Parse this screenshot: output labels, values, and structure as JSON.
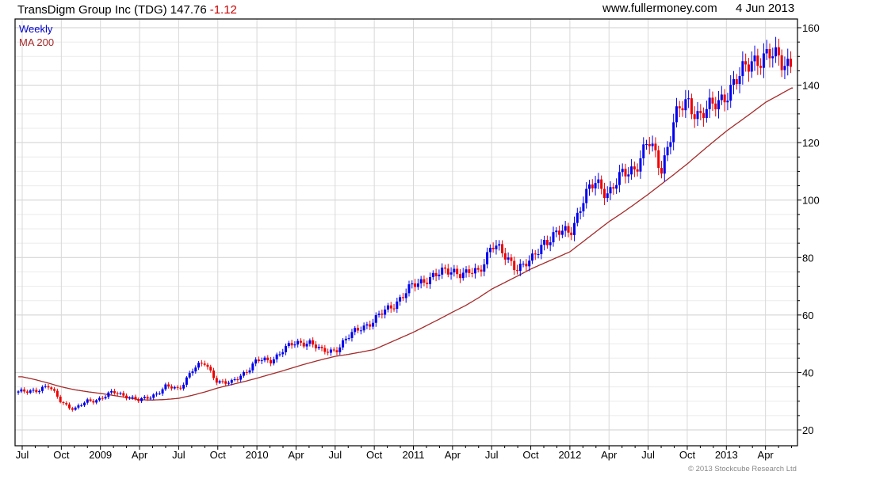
{
  "header": {
    "title": "TransDigm Group Inc (TDG) 147.76",
    "change": "-1.12",
    "site": "www.fullermoney.com",
    "date": "4 Jun 2013"
  },
  "legend": {
    "series1": "Weekly",
    "series2": "MA 200"
  },
  "footer": {
    "copyright": "© 2013 Stockcube Research Ltd"
  },
  "colors": {
    "up": "#0000ee",
    "down": "#ee0000",
    "ma": "#a52a2a",
    "grid": "#d8d8d8",
    "change": "#cc0000"
  },
  "chart_data": {
    "type": "candlestick",
    "title": "TransDigm Group Inc (TDG) 147.76 -1.12",
    "ylim": [
      15,
      162
    ],
    "yticks": [
      20,
      40,
      60,
      80,
      100,
      120,
      140,
      160
    ],
    "xticks": [
      "Jul",
      "Oct",
      "2009",
      "Apr",
      "Jul",
      "Oct",
      "2010",
      "Apr",
      "Jul",
      "Oct",
      "2011",
      "Apr",
      "Jul",
      "Oct",
      "2012",
      "Apr",
      "Jul",
      "Oct",
      "2013",
      "Apr"
    ],
    "grid": true,
    "legend_position": "top-left",
    "months": [
      "Jul08",
      "Aug08",
      "Sep08",
      "Oct08",
      "Nov08",
      "Dec08",
      "Jan09",
      "Feb09",
      "Mar09",
      "Apr09",
      "May09",
      "Jun09",
      "Jul09",
      "Aug09",
      "Sep09",
      "Oct09",
      "Nov09",
      "Dec09",
      "Jan10",
      "Feb10",
      "Mar10",
      "Apr10",
      "May10",
      "Jun10",
      "Jul10",
      "Aug10",
      "Sep10",
      "Oct10",
      "Nov10",
      "Dec10",
      "Jan11",
      "Feb11",
      "Mar11",
      "Apr11",
      "May11",
      "Jun11",
      "Jul11",
      "Aug11",
      "Sep11",
      "Oct11",
      "Nov11",
      "Dec11",
      "Jan12",
      "Feb12",
      "Mar12",
      "Apr12",
      "May12",
      "Jun12",
      "Jul12",
      "Aug12",
      "Sep12",
      "Oct12",
      "Nov12",
      "Dec12",
      "Jan13",
      "Feb13",
      "Mar13",
      "Apr13",
      "May13",
      "Jun13"
    ],
    "series": [
      {
        "name": "Weekly",
        "values": [
          33,
          34,
          35,
          30,
          27,
          30,
          31,
          33,
          32,
          30,
          32,
          35,
          34,
          41,
          43,
          37,
          36,
          40,
          44,
          44,
          48,
          50,
          51,
          47,
          48,
          52,
          56,
          58,
          62,
          66,
          70,
          73,
          74,
          76,
          74,
          75,
          85,
          80,
          77,
          78,
          86,
          88,
          89,
          100,
          106,
          103,
          108,
          112,
          120,
          111,
          128,
          134,
          130,
          132,
          138,
          142,
          150,
          149,
          150,
          147.76
        ]
      },
      {
        "name": "MA 200",
        "values": [
          38.5,
          37.5,
          36.3,
          35,
          34,
          33.3,
          32.7,
          32,
          31.3,
          30.5,
          30.4,
          30.6,
          31,
          32,
          33.2,
          34.6,
          35.7,
          36.8,
          38,
          39.3,
          40.6,
          42,
          43.3,
          44.5,
          45.6,
          46.3,
          47.1,
          48,
          50,
          52,
          54,
          56.3,
          58.6,
          61,
          63.3,
          66,
          69,
          71.3,
          73.6,
          76,
          78,
          80,
          82,
          85.5,
          89,
          92.5,
          95.5,
          98.7,
          102,
          105.5,
          109,
          112.6,
          116.5,
          120.3,
          124,
          127.3,
          130.6,
          134,
          136.5,
          139
        ]
      }
    ]
  }
}
